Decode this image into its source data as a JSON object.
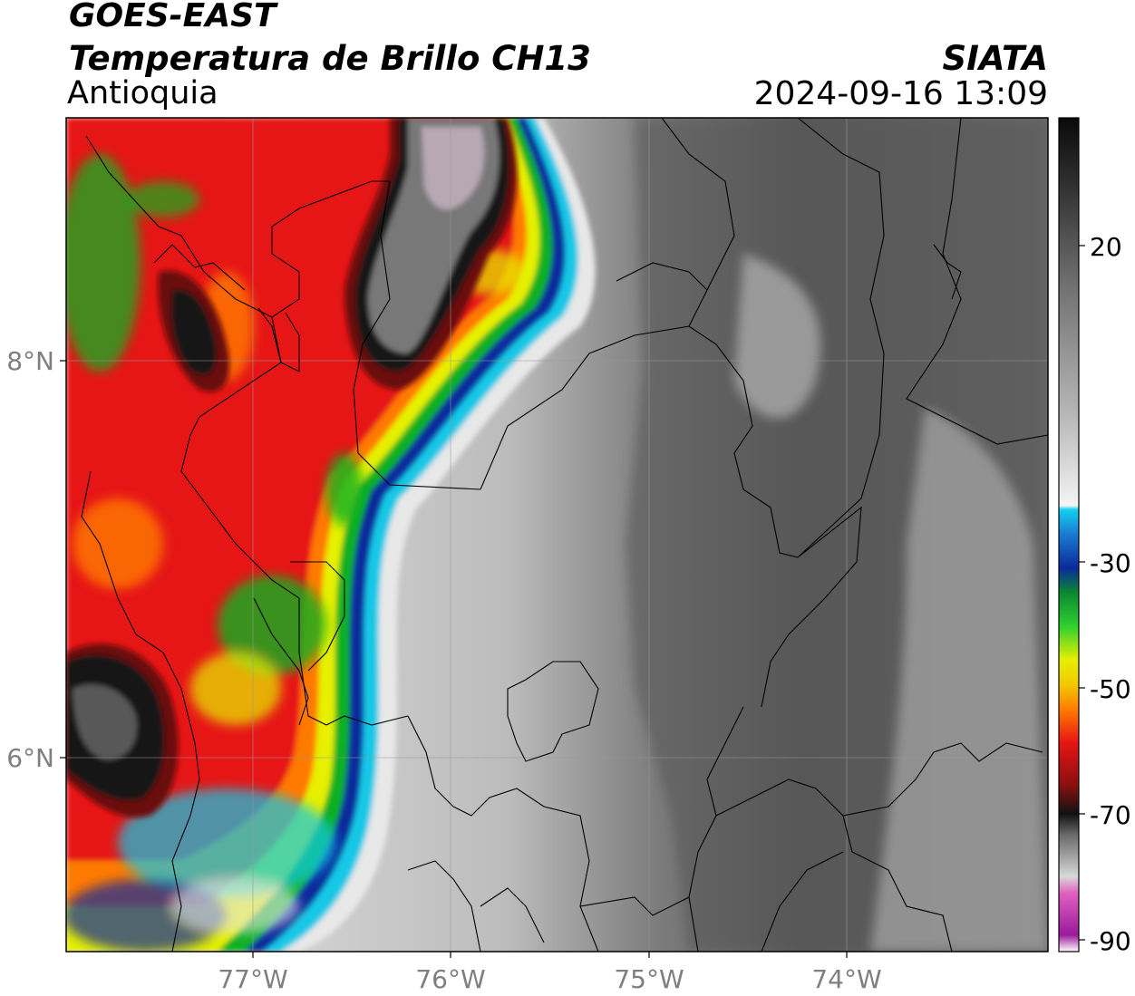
{
  "header": {
    "satellite": "GOES-EAST",
    "product": "Temperatura de Brillo CH13",
    "region": "Antioquia",
    "agency": "SIATA",
    "datetime": "2024-09-16 13:09"
  },
  "axes": {
    "lon_labels": [
      "77°W",
      "76°W",
      "75°W",
      "74°W"
    ],
    "lat_labels": [
      "8°N",
      "6°N"
    ]
  },
  "colorbar": {
    "ticks": [
      "20",
      "-30",
      "-50",
      "-70",
      "-90"
    ],
    "colors": {
      "warm_gray": "#5a5a5a",
      "light": "#f2f2f2",
      "cyan": "#12c8e6",
      "blue": "#0a2a9c",
      "green": "#10b020",
      "yellow": "#f2f000",
      "orange": "#ff7a00",
      "red": "#e61414",
      "dark": "#1a1a1a",
      "magenta": "#d040b0"
    }
  }
}
